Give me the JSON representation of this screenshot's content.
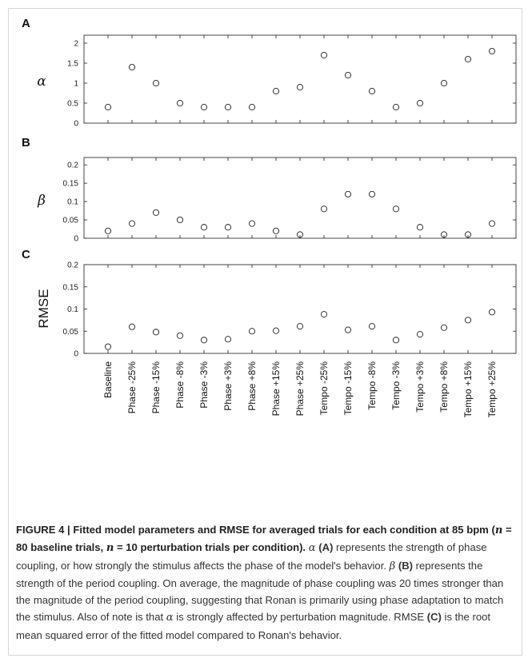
{
  "chart_data": [
    {
      "type": "scatter",
      "panel": "A",
      "ylabel": "α",
      "ylim": [
        0,
        2.2
      ],
      "yticks": [
        "0",
        "0.5",
        "1",
        "1.5",
        "2"
      ],
      "ytick_values": [
        0,
        0.5,
        1,
        1.5,
        2
      ],
      "categories": [
        "Baseline",
        "Phase -25%",
        "Phase -15%",
        "Phase -8%",
        "Phase -3%",
        "Phase +3%",
        "Phase +8%",
        "Phase +15%",
        "Phase +25%",
        "Tempo -25%",
        "Tempo -15%",
        "Tempo -8%",
        "Tempo -3%",
        "Tempo +3%",
        "Tempo +8%",
        "Tempo +15%",
        "Tempo +25%"
      ],
      "values": [
        0.4,
        1.4,
        1.0,
        0.5,
        0.4,
        0.4,
        0.4,
        0.8,
        0.9,
        1.7,
        1.2,
        0.8,
        0.4,
        0.5,
        1.0,
        1.6,
        1.8
      ]
    },
    {
      "type": "scatter",
      "panel": "B",
      "ylabel": "β",
      "ylim": [
        0,
        0.22
      ],
      "yticks": [
        "0",
        "0.05",
        "0.1",
        "0.15",
        "0.2"
      ],
      "ytick_values": [
        0,
        0.05,
        0.1,
        0.15,
        0.2
      ],
      "categories": [
        "Baseline",
        "Phase -25%",
        "Phase -15%",
        "Phase -8%",
        "Phase -3%",
        "Phase +3%",
        "Phase +8%",
        "Phase +15%",
        "Phase +25%",
        "Tempo -25%",
        "Tempo -15%",
        "Tempo -8%",
        "Tempo -3%",
        "Tempo +3%",
        "Tempo +8%",
        "Tempo +15%",
        "Tempo +25%"
      ],
      "values": [
        0.02,
        0.04,
        0.07,
        0.05,
        0.03,
        0.03,
        0.04,
        0.02,
        0.01,
        0.08,
        0.12,
        0.12,
        0.08,
        0.03,
        0.01,
        0.01,
        0.04
      ]
    },
    {
      "type": "scatter",
      "panel": "C",
      "ylabel": "RMSE",
      "ylim": [
        0,
        0.2
      ],
      "yticks": [
        "0",
        "0.05",
        "0.1",
        "0.15",
        "0.2"
      ],
      "ytick_values": [
        0,
        0.05,
        0.1,
        0.15,
        0.2
      ],
      "categories": [
        "Baseline",
        "Phase -25%",
        "Phase -15%",
        "Phase -8%",
        "Phase -3%",
        "Phase +3%",
        "Phase +8%",
        "Phase +15%",
        "Phase +25%",
        "Tempo -25%",
        "Tempo -15%",
        "Tempo -8%",
        "Tempo -3%",
        "Tempo +3%",
        "Tempo +8%",
        "Tempo +15%",
        "Tempo +25%"
      ],
      "values": [
        0.015,
        0.06,
        0.048,
        0.04,
        0.03,
        0.032,
        0.05,
        0.051,
        0.061,
        0.088,
        0.053,
        0.061,
        0.03,
        0.043,
        0.058,
        0.075,
        0.093
      ]
    }
  ],
  "caption": {
    "figure_label": "FIGURE 4 | Fitted model parameters and RMSE for averaged trials for each condition at 85 bpm (",
    "n1_sym": "n",
    "n1_text": " = 80 baseline trials, ",
    "n2_sym": "n",
    "n2_text": " = 10 perturbation trials per condition).",
    "alpha_sym": "α",
    "a_ref": "(A)",
    "alpha_text": " represents the strength of phase coupling, or how strongly the stimulus affects the phase of the model's behavior. ",
    "beta_sym": "β",
    "b_ref": "(B)",
    "beta_text": " represents the strength of the period coupling. On average, the magnitude of phase coupling was 20 times stronger than the magnitude of the period coupling, suggesting that Ronan is primarily using phase adaptation to match the stimulus. Also of note is that ",
    "alpha_sym2": "α",
    "alpha_text2": " is strongly affected by perturbation magnitude. RMSE ",
    "c_ref": "(C)",
    "c_text": " is the root mean squared error of the fitted model compared to Ronan's behavior."
  }
}
